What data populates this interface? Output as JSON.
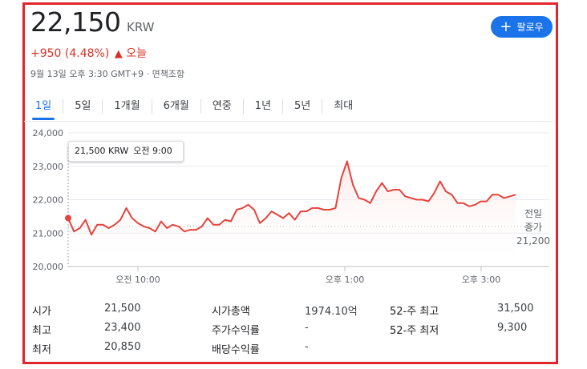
{
  "quote": {
    "price": "22,150",
    "currency": "KRW",
    "change": "+950 (4.48%)",
    "change_arrow": "🡑",
    "change_period": "오늘",
    "timestamp": "9월 13일 오후 3:30 GMT+9 · 면책조항"
  },
  "follow_button": {
    "label": "팔로우",
    "icon": "plus-icon"
  },
  "tabs": [
    {
      "label": "1일",
      "active": true
    },
    {
      "label": "5일"
    },
    {
      "label": "1개월"
    },
    {
      "label": "6개월"
    },
    {
      "label": "연중"
    },
    {
      "label": "1년"
    },
    {
      "label": "5년"
    },
    {
      "label": "최대"
    }
  ],
  "tooltip": {
    "price": "21,500 KRW",
    "time": "오전 9:00"
  },
  "previous_close": {
    "label_line1": "전일",
    "label_line2": "종가",
    "value": "21,200"
  },
  "colors": {
    "line": "#e8433d",
    "fill": "#fce8e6",
    "accent": "#1a73e8",
    "frame": "#e0252b"
  },
  "chart_data": {
    "type": "area",
    "x_tick_labels": [
      "오전 10:00",
      "오후 1:00",
      "오후 3:00"
    ],
    "y_tick_labels": [
      "24,000",
      "23,000",
      "22,000",
      "21,000",
      "20,000"
    ],
    "ylim": [
      20000,
      24000
    ],
    "grid": true,
    "previous_close": 21200,
    "series": [
      {
        "values": [
          21450,
          21050,
          21150,
          21400,
          20950,
          21250,
          21250,
          21150,
          21250,
          21400,
          21750,
          21450,
          21300,
          21200,
          21150,
          21050,
          21350,
          21150,
          21250,
          21200,
          21050,
          21100,
          21100,
          21200,
          21450,
          21250,
          21250,
          21400,
          21350,
          21700,
          21750,
          21850,
          21700,
          21300,
          21450,
          21650,
          21550,
          21450,
          21600,
          21400,
          21650,
          21650,
          21750,
          21750,
          21700,
          21700,
          21750,
          22650,
          23150,
          22450,
          22050,
          22000,
          21900,
          22250,
          22500,
          22250,
          22300,
          22300,
          22100,
          22050,
          22000,
          22000,
          21950,
          22200,
          22550,
          22250,
          22150,
          21900,
          21900,
          21800,
          21850,
          21950,
          21950,
          22150,
          22150,
          22050,
          22100,
          22150
        ]
      }
    ]
  },
  "stats": [
    {
      "label": "시가",
      "value": "21,500"
    },
    {
      "label": "최고",
      "value": "23,400"
    },
    {
      "label": "최저",
      "value": "20,850"
    },
    {
      "label": "시가총액",
      "value": "1974.10억"
    },
    {
      "label": "주가수익률",
      "value": "-"
    },
    {
      "label": "배당수익률",
      "value": "-"
    },
    {
      "label": "52-주 최고",
      "value": "31,500"
    },
    {
      "label": "52-주 최저",
      "value": "9,300"
    }
  ]
}
